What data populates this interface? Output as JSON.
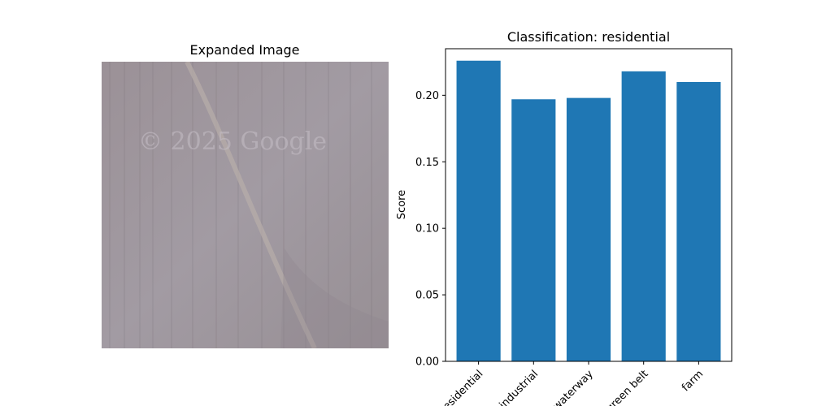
{
  "image_panel": {
    "title": "Expanded Image",
    "watermark": "© 2025 Google"
  },
  "chart_data": {
    "type": "bar",
    "title": "Classification: residential",
    "xlabel": "",
    "ylabel": "Score",
    "categories": [
      "residential",
      "industrial",
      "waterway",
      "green belt",
      "farm"
    ],
    "values": [
      0.226,
      0.197,
      0.198,
      0.218,
      0.21
    ],
    "ylim": [
      0,
      0.235
    ],
    "yticks": [
      "0.00",
      "0.05",
      "0.10",
      "0.15",
      "0.20"
    ],
    "ytick_values": [
      0,
      0.05,
      0.1,
      0.15,
      0.2
    ],
    "bar_color": "#1f77b4",
    "grid": false,
    "legend": "none",
    "xtick_rotation_deg": 45
  }
}
